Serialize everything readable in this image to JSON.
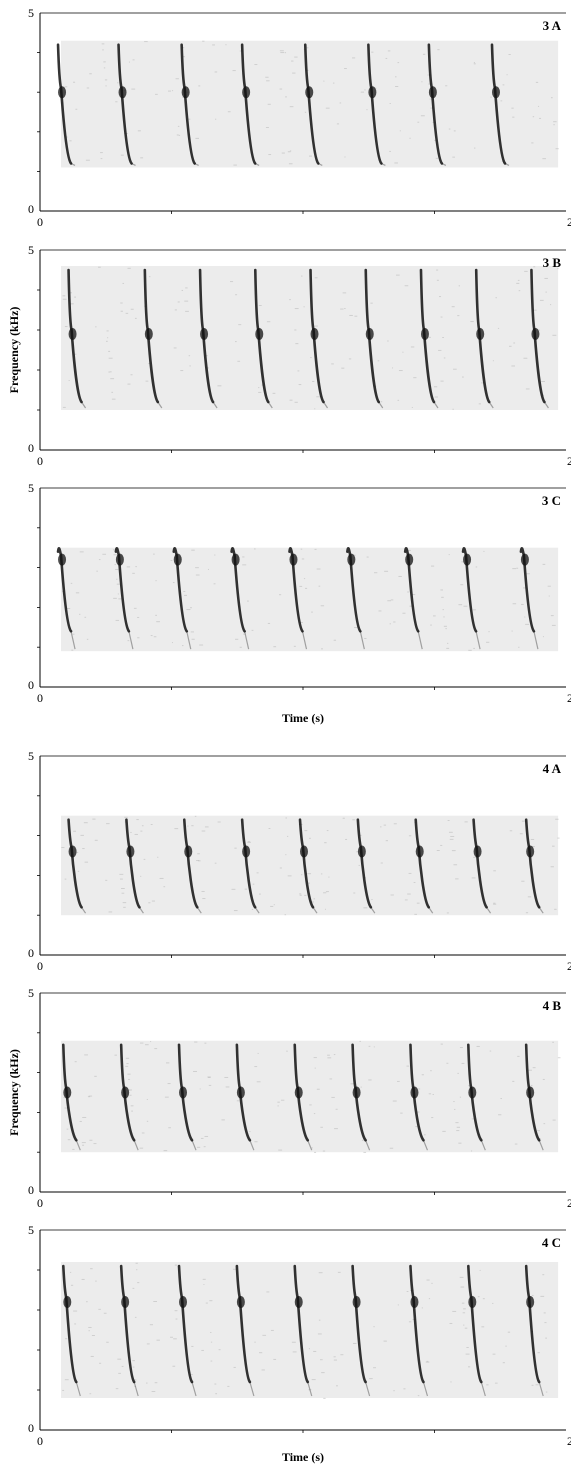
{
  "chart_data": [
    {
      "type": "spectrogram",
      "panel_label": "3 A",
      "xlabel": "",
      "ylabel": "",
      "xlim": [
        0,
        2
      ],
      "ylim": [
        0,
        5
      ],
      "x_ticks": [
        "0",
        "2"
      ],
      "y_ticks": [
        "0",
        "5"
      ],
      "signal_band_khz": [
        1.1,
        4.3
      ],
      "note_times_s": [
        0.08,
        0.31,
        0.55,
        0.78,
        1.02,
        1.26,
        1.49,
        1.73
      ],
      "note_peak_khz": 3.1,
      "note_low_khz": 1.2
    },
    {
      "type": "spectrogram",
      "panel_label": "3 B",
      "xlabel": "",
      "ylabel": "Frequency (kHz)",
      "xlim": [
        0,
        2
      ],
      "ylim": [
        0,
        5
      ],
      "x_ticks": [
        "0",
        "2"
      ],
      "y_ticks": [
        "0",
        "5"
      ],
      "signal_band_khz": [
        1.0,
        4.6
      ],
      "note_times_s": [
        0.12,
        0.41,
        0.62,
        0.83,
        1.04,
        1.25,
        1.46,
        1.67,
        1.88
      ],
      "note_peak_khz": 3.0,
      "note_low_khz": 1.2
    },
    {
      "type": "spectrogram",
      "panel_label": "3 C",
      "xlabel": "Time (s)",
      "ylabel": "",
      "xlim": [
        0,
        2
      ],
      "ylim": [
        0,
        5
      ],
      "x_ticks": [
        "0",
        "2"
      ],
      "y_ticks": [
        "0",
        "5"
      ],
      "signal_band_khz": [
        0.9,
        3.5
      ],
      "note_times_s": [
        0.08,
        0.3,
        0.52,
        0.74,
        0.96,
        1.18,
        1.4,
        1.62,
        1.84
      ],
      "note_peak_khz": 3.3,
      "note_low_khz": 1.4
    },
    {
      "type": "spectrogram",
      "panel_label": "4 A",
      "xlabel": "",
      "ylabel": "",
      "xlim": [
        0,
        2
      ],
      "ylim": [
        0,
        5
      ],
      "x_ticks": [
        "0",
        "2"
      ],
      "y_ticks": [
        "0",
        "5"
      ],
      "signal_band_khz": [
        1.0,
        3.5
      ],
      "note_times_s": [
        0.12,
        0.34,
        0.56,
        0.78,
        1.0,
        1.22,
        1.44,
        1.66,
        1.86
      ],
      "note_peak_khz": 2.7,
      "note_low_khz": 1.2
    },
    {
      "type": "spectrogram",
      "panel_label": "4 B",
      "xlabel": "",
      "ylabel": "Frequency (kHz)",
      "xlim": [
        0,
        2
      ],
      "ylim": [
        0,
        5
      ],
      "x_ticks": [
        "0",
        "2"
      ],
      "y_ticks": [
        "0",
        "5"
      ],
      "signal_band_khz": [
        1.0,
        3.8
      ],
      "note_times_s": [
        0.1,
        0.32,
        0.54,
        0.76,
        0.98,
        1.2,
        1.42,
        1.64,
        1.86
      ],
      "note_peak_khz": 2.6,
      "note_low_khz": 1.3
    },
    {
      "type": "spectrogram",
      "panel_label": "4 C",
      "xlabel": "Time (s)",
      "ylabel": "",
      "xlim": [
        0,
        2
      ],
      "ylim": [
        0,
        5
      ],
      "x_ticks": [
        "0",
        "2"
      ],
      "y_ticks": [
        "0",
        "5"
      ],
      "signal_band_khz": [
        0.8,
        4.2
      ],
      "note_times_s": [
        0.1,
        0.32,
        0.54,
        0.76,
        0.98,
        1.2,
        1.42,
        1.64,
        1.86
      ],
      "note_peak_khz": 3.3,
      "note_low_khz": 1.2
    }
  ],
  "colors": {
    "ink": "#111111",
    "band": "#ececec",
    "axis": "#000000"
  }
}
